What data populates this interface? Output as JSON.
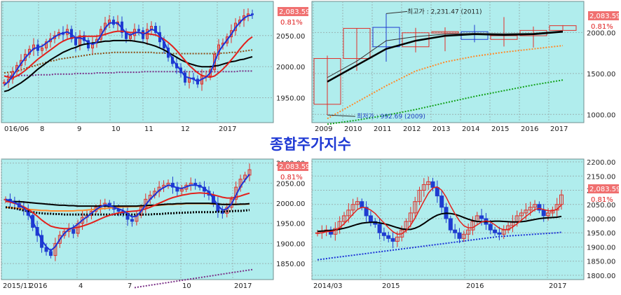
{
  "page_title": "종합주가지수",
  "colors": {
    "plot_bg": "#b0eded",
    "grid": "#9ab4b4",
    "candle_red": "#e0302a",
    "candle_blue": "#1f3cd0",
    "ma_blue": "#1d33d6",
    "ma_red": "#e3211c",
    "ma_black": "#000000",
    "ma_brown": "#8b4a12",
    "ma_purple": "#7a2f86",
    "ma_orange": "#ff8a2a",
    "ma_green": "#15a21d",
    "price_tag_bg": "#f07070",
    "title_color": "#1f39d4"
  },
  "chart_data": [
    {
      "type": "candlestick",
      "id": "daily-2016",
      "last_price": "2,083.59",
      "change": "0.81%",
      "y_ticks": [
        "2050.00",
        "2000.00",
        "1950.00"
      ],
      "ylim": [
        1910,
        2105
      ],
      "x_ticks": [
        "016/06",
        "8",
        "9",
        "10",
        "11",
        "12",
        "2017"
      ],
      "close": [
        1975,
        1980,
        1992,
        2002,
        2010,
        2020,
        2028,
        2035,
        2026,
        2030,
        2040,
        2045,
        2050,
        2055,
        2052,
        2060,
        2045,
        2035,
        2050,
        2042,
        2030,
        2038,
        2044,
        2060,
        2070,
        2075,
        2068,
        2072,
        2055,
        2045,
        2050,
        2060,
        2058,
        2045,
        2060,
        2065,
        2055,
        2040,
        2030,
        2015,
        2005,
        1998,
        1990,
        1975,
        1982,
        1980,
        1972,
        1985,
        1985,
        1995,
        2020,
        2035,
        2038,
        2048,
        2058,
        2070,
        2075,
        2082,
        2085,
        2083.59
      ],
      "ma_short": [
        1970,
        1976,
        1985,
        1995,
        2005,
        2014,
        2022,
        2029,
        2031,
        2033,
        2038,
        2043,
        2048,
        2052,
        2054,
        2056,
        2052,
        2046,
        2046,
        2044,
        2039,
        2036,
        2039,
        2050,
        2062,
        2070,
        2071,
        2070,
        2062,
        2054,
        2051,
        2054,
        2056,
        2052,
        2055,
        2060,
        2058,
        2050,
        2040,
        2026,
        2012,
        2002,
        1994,
        1984,
        1982,
        1980,
        1976,
        1980,
        1983,
        1990,
        2007,
        2024,
        2034,
        2043,
        2052,
        2063,
        2071,
        2078,
        2082,
        2083
      ],
      "ma_mid": [
        1985,
        1983,
        1982,
        1985,
        1989,
        1994,
        2000,
        2006,
        2012,
        2017,
        2022,
        2027,
        2032,
        2037,
        2041,
        2044,
        2046,
        2047,
        2048,
        2049,
        2049,
        2049,
        2049,
        2050,
        2052,
        2054,
        2056,
        2057,
        2057,
        2056,
        2055,
        2055,
        2055,
        2054,
        2053,
        2052,
        2051,
        2048,
        2044,
        2039,
        2033,
        2026,
        2018,
        2010,
        2002,
        1996,
        1990,
        1986,
        1984,
        1983,
        1985,
        1990,
        1996,
        2003,
        2011,
        2019,
        2028,
        2036,
        2043,
        2048
      ],
      "ma_long": [
        1960,
        1962,
        1966,
        1970,
        1974,
        1979,
        1984,
        1990,
        1996,
        2001,
        2006,
        2011,
        2015,
        2019,
        2023,
        2026,
        2029,
        2031,
        2034,
        2036,
        2037,
        2038,
        2039,
        2040,
        2041,
        2041,
        2042,
        2042,
        2042,
        2042,
        2042,
        2041,
        2040,
        2039,
        2037,
        2035,
        2033,
        2030,
        2027,
        2023,
        2019,
        2015,
        2011,
        2008,
        2005,
        2003,
        2001,
        2000,
        2000,
        2000,
        2001,
        2002,
        2004,
        2006,
        2008,
        2009,
        2011,
        2012,
        2014,
        2016
      ],
      "ma_brown": [
        1990,
        1991,
        1992,
        1993,
        1995,
        1997,
        1999,
        2001,
        2003,
        2005,
        2007,
        2009,
        2010,
        2012,
        2013,
        2014,
        2015,
        2016,
        2017,
        2018,
        2019,
        2020,
        2021,
        2021,
        2022,
        2022,
        2023,
        2023,
        2023,
        2023,
        2023,
        2023,
        2023,
        2023,
        2023,
        2023,
        2022,
        2022,
        2022,
        2021,
        2021,
        2021,
        2021,
        2021,
        2021,
        2021,
        2021,
        2021,
        2021,
        2021,
        2021,
        2021,
        2022,
        2022,
        2023,
        2023,
        2024,
        2025,
        2026,
        2027
      ],
      "ma_purple": [
        1985,
        1985,
        1985,
        1985,
        1986,
        1986,
        1986,
        1986,
        1987,
        1987,
        1987,
        1987,
        1988,
        1988,
        1988,
        1988,
        1988,
        1989,
        1989,
        1989,
        1989,
        1989,
        1990,
        1990,
        1990,
        1990,
        1990,
        1991,
        1991,
        1991,
        1991,
        1991,
        1991,
        1992,
        1992,
        1992,
        1992,
        1992,
        1992,
        1992,
        1992,
        1992,
        1992,
        1992,
        1992,
        1992,
        1992,
        1992,
        1992,
        1992,
        1992,
        1992,
        1992,
        1992,
        1992,
        1992,
        1993,
        1993,
        1993,
        1993
      ]
    },
    {
      "type": "candlestick",
      "id": "yearly",
      "last_price": "2,083.59",
      "change": "0.81%",
      "y_ticks": [
        "2000.00",
        "1500.00",
        "1000.00"
      ],
      "ylim": [
        900,
        2380
      ],
      "x_ticks": [
        "2009",
        "2010",
        "2011",
        "2012",
        "2013",
        "2014",
        "2015",
        "2016",
        "2017"
      ],
      "annotation_high": "최고가 : 2,231.47 (2011)",
      "annotation_low": "최저가 : 992.69 (2009)",
      "candles": [
        {
          "open": 1124,
          "high": 1718,
          "low": 993,
          "close": 1683
        },
        {
          "open": 1683,
          "high": 2052,
          "low": 1533,
          "close": 2051
        },
        {
          "open": 2063,
          "high": 2231,
          "low": 1644,
          "close": 1826
        },
        {
          "open": 1826,
          "high": 2057,
          "low": 1758,
          "close": 1997
        },
        {
          "open": 1997,
          "high": 2063,
          "low": 1772,
          "close": 2011
        },
        {
          "open": 2011,
          "high": 2093,
          "low": 1881,
          "close": 1916
        },
        {
          "open": 1916,
          "high": 2189,
          "low": 1829,
          "close": 1961
        },
        {
          "open": 1961,
          "high": 2073,
          "low": 1817,
          "close": 2026
        },
        {
          "open": 2026,
          "high": 2090,
          "low": 2026,
          "close": 2083.59
        }
      ],
      "ma_black": [
        1400,
        1600,
        1800,
        1900,
        1960,
        1980,
        1970,
        1980,
        2010
      ],
      "ma_orange": [
        950,
        1150,
        1350,
        1530,
        1640,
        1710,
        1760,
        1800,
        1840
      ],
      "ma_green": [
        880,
        930,
        990,
        1060,
        1140,
        1220,
        1290,
        1360,
        1420
      ],
      "ma_thin": [
        1450,
        1650,
        1900,
        1950,
        1980,
        1990,
        1985,
        1990,
        2020
      ]
    },
    {
      "type": "candlestick",
      "id": "daily-2015",
      "last_price": "2,083.59",
      "change": "0.81%",
      "y_ticks": [
        "2100.00",
        "2050.00",
        "2000.00",
        "1950.00",
        "1900.00",
        "1850.00"
      ],
      "ylim": [
        1810,
        2110
      ],
      "x_ticks": [
        "2015/11",
        "2016",
        "4",
        "7",
        "10",
        "2017"
      ],
      "close": [
        2010,
        2005,
        2000,
        1990,
        1985,
        1970,
        1940,
        1920,
        1890,
        1880,
        1870,
        1900,
        1920,
        1930,
        1935,
        1925,
        1950,
        1965,
        1970,
        1980,
        1990,
        1995,
        2000,
        1990,
        1985,
        1980,
        1975,
        1960,
        1955,
        1970,
        1990,
        2010,
        2020,
        2030,
        2040,
        2045,
        2050,
        2040,
        2030,
        2035,
        2045,
        2050,
        2045,
        2040,
        2030,
        2020,
        2000,
        1980,
        1975,
        1990,
        2010,
        2040,
        2060,
        2070,
        2083.59
      ],
      "ma_blue": [
        2010,
        2006,
        2002,
        1995,
        1988,
        1976,
        1955,
        1932,
        1908,
        1892,
        1882,
        1892,
        1910,
        1925,
        1935,
        1940,
        1948,
        1958,
        1966,
        1975,
        1984,
        1991,
        1996,
        1994,
        1990,
        1986,
        1982,
        1974,
        1966,
        1968,
        1980,
        1996,
        2010,
        2021,
        2032,
        2039,
        2045,
        2043,
        2038,
        2037,
        2041,
        2045,
        2045,
        2043,
        2037,
        2028,
        2012,
        1994,
        1983,
        1986,
        1998,
        2020,
        2042,
        2058,
        2072
      ],
      "ma_red": [
        2005,
        2003,
        2000,
        1996,
        1991,
        1985,
        1977,
        1968,
        1958,
        1950,
        1943,
        1940,
        1938,
        1937,
        1937,
        1938,
        1940,
        1943,
        1947,
        1951,
        1956,
        1961,
        1966,
        1970,
        1973,
        1976,
        1978,
        1979,
        1980,
        1981,
        1983,
        1986,
        1990,
        1995,
        2000,
        2005,
        2010,
        2014,
        2017,
        2020,
        2022,
        2024,
        2025,
        2026,
        2025,
        2024,
        2021,
        2018,
        2015,
        2013,
        2013,
        2015,
        2018,
        2022,
        2025
      ],
      "ma_black": [
        2005,
        2005,
        2004,
        2004,
        2003,
        2002,
        2001,
        2000,
        1999,
        1998,
        1997,
        1996,
        1995,
        1995,
        1994,
        1994,
        1993,
        1993,
        1993,
        1993,
        1993,
        1993,
        1993,
        1993,
        1993,
        1993,
        1993,
        1993,
        1993,
        1993,
        1994,
        1994,
        1995,
        1995,
        1996,
        1997,
        1998,
        1998,
        1999,
        1999,
        2000,
        2000,
        2000,
        2000,
        2000,
        2000,
        1999,
        1998,
        1997,
        1997,
        1997,
        1997,
        1998,
        1998,
        1999
      ],
      "ma_orange": [
        1990,
        1989,
        1988,
        1987,
        1986,
        1985,
        1984,
        1983,
        1982,
        1982,
        1981,
        1981,
        1981,
        1981,
        1981,
        1981,
        1982,
        1982,
        1983,
        1984,
        1985,
        1986,
        1987,
        1988,
        1989,
        1990,
        1991,
        1991,
        1992,
        1992,
        1993,
        1993,
        1994,
        1994,
        1995,
        1996,
        1997,
        1997,
        1998,
        1998,
        1999,
        1999,
        1999,
        1999,
        1999,
        1999,
        1998,
        1998,
        1997,
        1997,
        1997,
        1997,
        1997,
        1998,
        1998
      ],
      "ma_dotted": [
        1990,
        1989,
        1987,
        1985,
        1982,
        1980,
        1978,
        1976,
        1975,
        1974,
        1974,
        1973,
        1973,
        1972,
        1972,
        1972,
        1972,
        1972,
        1972,
        1972,
        1972,
        1972,
        1972,
        1972,
        1972,
        1972,
        1972,
        1972,
        1972,
        1972,
        1972,
        1972,
        1972,
        1973,
        1973,
        1974,
        1975,
        1975,
        1976,
        1976,
        1977,
        1977,
        1978,
        1978,
        1978,
        1978,
        1978,
        1979,
        1979,
        1980,
        1980,
        1981,
        1981,
        1982,
        1983
      ],
      "ma_purple": [
        1790,
        1793,
        1796,
        1799,
        1802,
        1805,
        1808,
        1811,
        1814,
        1817,
        1820,
        1823,
        1826,
        1829,
        1832,
        1835
      ]
    },
    {
      "type": "candlestick",
      "id": "weekly-2014",
      "last_price": "2,083.59",
      "change": "0.81%",
      "y_ticks": [
        "2200.00",
        "2150.00",
        "2100.00",
        "2050.00",
        "2000.00",
        "1950.00",
        "1900.00",
        "1850.00",
        "1800.00"
      ],
      "ylim": [
        1785,
        2210
      ],
      "x_ticks": [
        "2014/03",
        "2015",
        "2016",
        "2017"
      ],
      "close": [
        1950,
        1955,
        1960,
        1945,
        1965,
        1990,
        2010,
        2030,
        2050,
        2060,
        2040,
        2010,
        1990,
        1980,
        1950,
        1940,
        1930,
        1920,
        1935,
        1960,
        1990,
        2020,
        2060,
        2100,
        2120,
        2130,
        2110,
        2080,
        2040,
        2000,
        1960,
        1950,
        1930,
        1945,
        1960,
        1990,
        2010,
        2000,
        1980,
        1960,
        1950,
        1945,
        1960,
        1975,
        1990,
        2010,
        2020,
        2030,
        2040,
        2050,
        2030,
        2010,
        2020,
        2030,
        2050,
        2083.59
      ],
      "ma_red": [
        1948,
        1950,
        1954,
        1955,
        1958,
        1968,
        1982,
        1998,
        2016,
        2032,
        2040,
        2038,
        2030,
        2018,
        2001,
        1985,
        1968,
        1954,
        1945,
        1946,
        1958,
        1977,
        2002,
        2032,
        2062,
        2090,
        2108,
        2112,
        2100,
        2076,
        2045,
        2017,
        1992,
        1975,
        1967,
        1968,
        1978,
        1988,
        1992,
        1988,
        1978,
        1966,
        1961,
        1962,
        1970,
        1982,
        1995,
        2008,
        2020,
        2032,
        2036,
        2032,
        2028,
        2027,
        2033,
        2048
      ],
      "ma_black": [
        1955,
        1956,
        1957,
        1958,
        1960,
        1963,
        1966,
        1970,
        1975,
        1980,
        1984,
        1986,
        1987,
        1987,
        1985,
        1982,
        1978,
        1973,
        1968,
        1964,
        1962,
        1962,
        1966,
        1973,
        1983,
        1994,
        2004,
        2012,
        2017,
        2019,
        2018,
        2015,
        2010,
        2004,
        1998,
        1993,
        1990,
        1989,
        1989,
        1990,
        1991,
        1991,
        1990,
        1989,
        1988,
        1988,
        1989,
        1991,
        1994,
        1997,
        2000,
        2002,
        2003,
        2004,
        2005,
        2008
      ],
      "ma_blue_dotted": [
        1855,
        1857,
        1859,
        1861,
        1863,
        1865,
        1867,
        1869,
        1871,
        1873,
        1875,
        1877,
        1879,
        1881,
        1883,
        1885,
        1887,
        1889,
        1891,
        1893,
        1895,
        1897,
        1899,
        1901,
        1903,
        1905,
        1907,
        1909,
        1911,
        1913,
        1915,
        1917,
        1919,
        1921,
        1923,
        1925,
        1927,
        1929,
        1931,
        1933,
        1935,
        1937,
        1938,
        1939,
        1940,
        1941,
        1942,
        1943,
        1944,
        1945,
        1946,
        1947,
        1948,
        1949,
        1950,
        1952
      ]
    }
  ]
}
